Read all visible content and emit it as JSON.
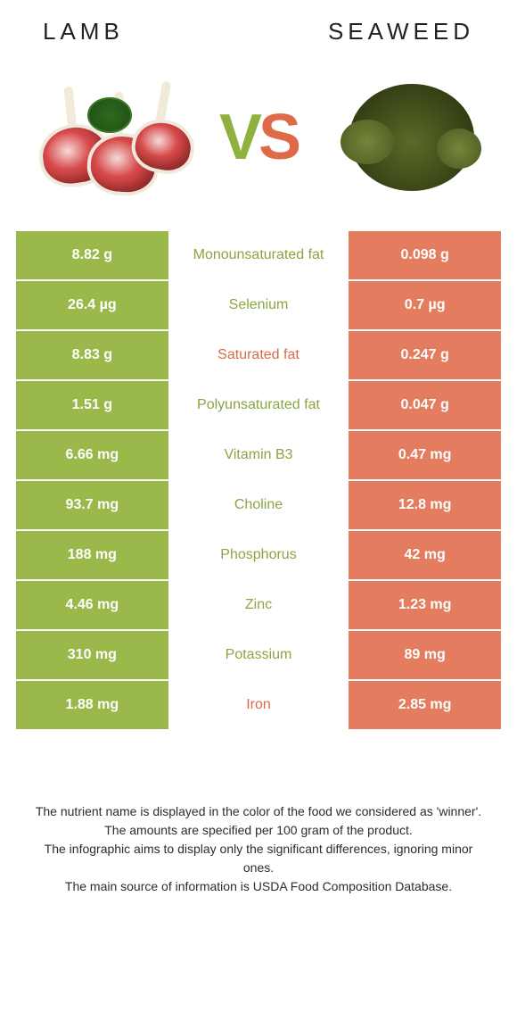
{
  "titles": {
    "left": "Lamb",
    "right": "Seaweed"
  },
  "vs": {
    "v": "V",
    "s": "S"
  },
  "colors": {
    "left_bg": "#9ab94a",
    "right_bg": "#e47d5f",
    "nutrient_left_color": "#8aa640",
    "nutrient_right_color": "#d86a4a",
    "row_border": "#ffffff"
  },
  "rows": [
    {
      "left": "8.82 g",
      "nutrient": "Monounsaturated fat",
      "winner": "left",
      "right": "0.098 g"
    },
    {
      "left": "26.4 µg",
      "nutrient": "Selenium",
      "winner": "left",
      "right": "0.7 µg"
    },
    {
      "left": "8.83 g",
      "nutrient": "Saturated fat",
      "winner": "right",
      "right": "0.247 g"
    },
    {
      "left": "1.51 g",
      "nutrient": "Polyunsaturated fat",
      "winner": "left",
      "right": "0.047 g"
    },
    {
      "left": "6.66 mg",
      "nutrient": "Vitamin B3",
      "winner": "left",
      "right": "0.47 mg"
    },
    {
      "left": "93.7 mg",
      "nutrient": "Choline",
      "winner": "left",
      "right": "12.8 mg"
    },
    {
      "left": "188 mg",
      "nutrient": "Phosphorus",
      "winner": "left",
      "right": "42 mg"
    },
    {
      "left": "4.46 mg",
      "nutrient": "Zinc",
      "winner": "left",
      "right": "1.23 mg"
    },
    {
      "left": "310 mg",
      "nutrient": "Potassium",
      "winner": "left",
      "right": "89 mg"
    },
    {
      "left": "1.88 mg",
      "nutrient": "Iron",
      "winner": "right",
      "right": "2.85 mg"
    }
  ],
  "footnotes": [
    "The nutrient name is displayed in the color of the food we considered as 'winner'.",
    "The amounts are specified per 100 gram of the product.",
    "The infographic aims to display only the significant differences, ignoring minor ones.",
    "The main source of information is USDA Food Composition Database."
  ]
}
